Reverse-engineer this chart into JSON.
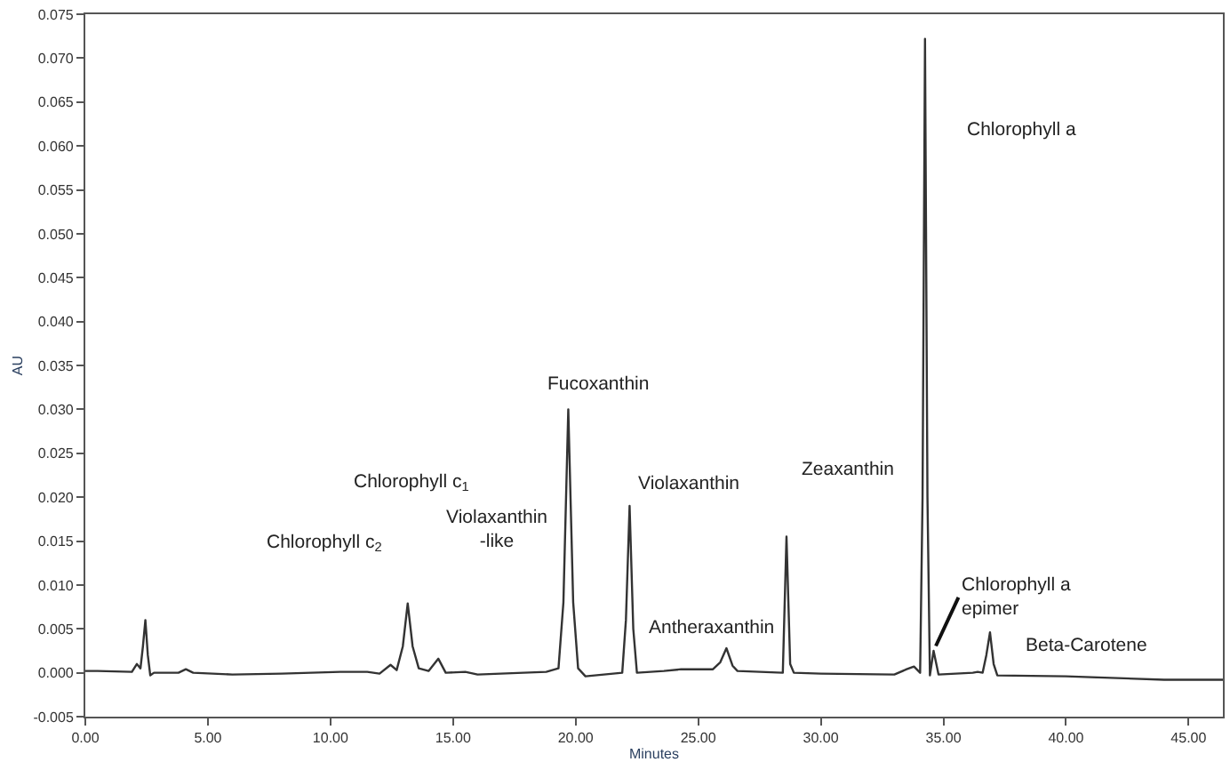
{
  "chart_data": {
    "type": "line",
    "xlabel": "Minutes",
    "ylabel": "AU",
    "x": [
      0,
      0.5,
      1.9,
      2.1,
      2.25,
      2.35,
      2.45,
      2.55,
      2.65,
      2.8,
      3.8,
      4.1,
      4.4,
      6,
      8,
      10.4,
      11.5,
      12,
      12.45,
      12.7,
      12.95,
      13.15,
      13.35,
      13.6,
      14.0,
      14.4,
      14.7,
      15.5,
      16,
      18.8,
      19.3,
      19.5,
      19.7,
      19.9,
      20.1,
      20.4,
      21.9,
      22.05,
      22.2,
      22.35,
      22.5,
      23.6,
      24.3,
      25.6,
      25.9,
      26.15,
      26.4,
      26.6,
      28.45,
      28.6,
      28.75,
      28.9,
      30,
      33,
      33.5,
      33.8,
      34.05,
      34.15,
      34.25,
      34.35,
      34.45,
      34.6,
      34.8,
      36.2,
      36.4,
      36.6,
      36.75,
      36.9,
      37.05,
      37.2,
      40,
      44,
      46.4
    ],
    "series": [
      {
        "color": "#333333",
        "values": [
          0.0002,
          0.0002,
          0.0001,
          0.001,
          0.0005,
          0.003,
          0.006,
          0.002,
          -0.0003,
          0,
          0,
          0.0004,
          0,
          -0.0002,
          -0.0001,
          0.0001,
          0.0001,
          -0.0001,
          0.0009,
          0.0003,
          0.003,
          0.0079,
          0.003,
          0.0005,
          0.0002,
          0.0016,
          0,
          0.0001,
          -0.0002,
          0.0001,
          0.0005,
          0.008,
          0.03,
          0.008,
          0.0005,
          -0.0004,
          0,
          0.006,
          0.019,
          0.005,
          0,
          0.0002,
          0.0004,
          0.0004,
          0.0012,
          0.0028,
          0.0008,
          0.0002,
          0,
          0.0155,
          0.001,
          0,
          -0.0001,
          -0.0002,
          0.0004,
          0.0007,
          0,
          0.02,
          0.0722,
          0.02,
          -0.0003,
          0.0025,
          -0.0002,
          0,
          0.0001,
          0,
          0.002,
          0.0046,
          0.001,
          -0.0003,
          -0.0004,
          -0.0008,
          -0.0008
        ]
      }
    ],
    "xlim": [
      0,
      46.4
    ],
    "xticks": [
      {
        "value": 0,
        "label": "0.00"
      },
      {
        "value": 5,
        "label": "5.00"
      },
      {
        "value": 10,
        "label": "10.00"
      },
      {
        "value": 15,
        "label": "15.00"
      },
      {
        "value": 20,
        "label": "20.00"
      },
      {
        "value": 25,
        "label": "25.00"
      },
      {
        "value": 30,
        "label": "30.00"
      },
      {
        "value": 35,
        "label": "35.00"
      },
      {
        "value": 40,
        "label": "40.00"
      },
      {
        "value": 45,
        "label": "45.00"
      }
    ],
    "ylim": [
      -0.005,
      0.075
    ],
    "yticks": [
      {
        "value": -0.005,
        "label": "-0.005"
      },
      {
        "value": 0,
        "label": "0.000"
      },
      {
        "value": 0.005,
        "label": "0.005"
      },
      {
        "value": 0.01,
        "label": "0.010"
      },
      {
        "value": 0.015,
        "label": "0.015"
      },
      {
        "value": 0.02,
        "label": "0.020"
      },
      {
        "value": 0.025,
        "label": "0.025"
      },
      {
        "value": 0.03,
        "label": "0.030"
      },
      {
        "value": 0.035,
        "label": "0.035"
      },
      {
        "value": 0.04,
        "label": "0.040"
      },
      {
        "value": 0.045,
        "label": "0.045"
      },
      {
        "value": 0.05,
        "label": "0.050"
      },
      {
        "value": 0.055,
        "label": "0.055"
      },
      {
        "value": 0.06,
        "label": "0.060"
      },
      {
        "value": 0.065,
        "label": "0.065"
      },
      {
        "value": 0.07,
        "label": "0.070"
      },
      {
        "value": 0.075,
        "label": "0.075"
      }
    ],
    "marker": "none",
    "line_style": "solid",
    "annotations": [
      "Chlorophyll c$_{2}$",
      "Chlorophyll c$_{1}$",
      "Violaxanthin\n-like",
      {
        "text": "Fucoxanthin",
        "x": 19.7,
        "y": 0.03
      },
      {
        "text": "Violaxanthin",
        "x": 22.2,
        "y": 0.019
      },
      {
        "text": "Antheraxanthin",
        "x": 26.15,
        "y": 0.0028
      },
      "Zeaxanthin",
      "Chlorophyll a",
      {
        "text": "Chlorophyll a\nepimer",
        "x": 34.6,
        "y": 0.0025
      },
      {
        "text": "Beta-Carotene",
        "x": 36.9,
        "y": 0.0046
      }
    ]
  }
}
